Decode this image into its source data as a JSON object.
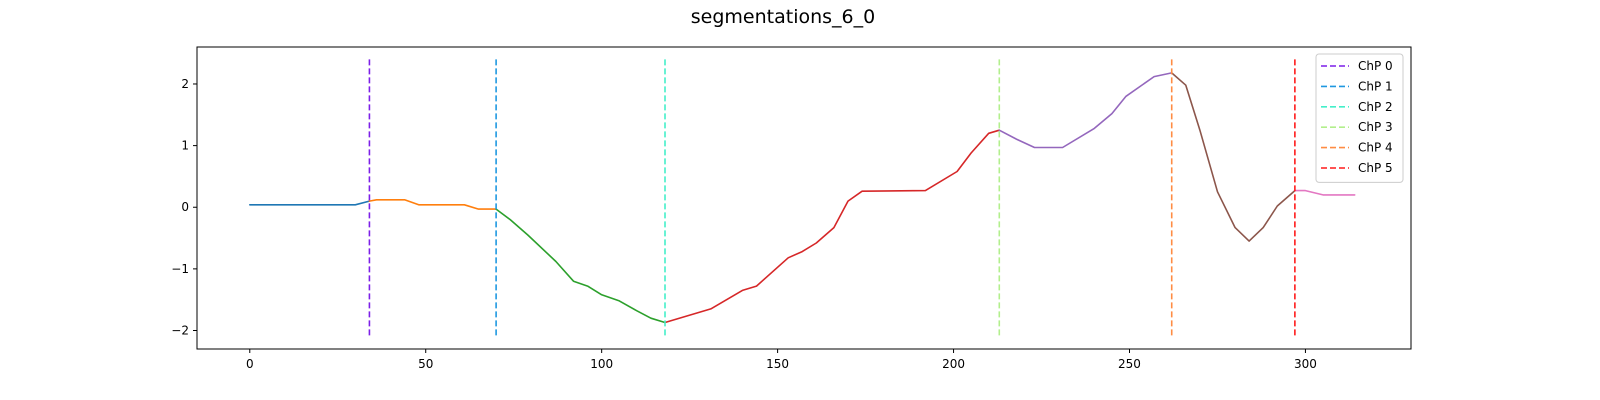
{
  "chart_data": {
    "type": "line",
    "title": "segmentations_6_0",
    "xlabel": "",
    "ylabel": "",
    "xlim": [
      -15,
      330
    ],
    "ylim": [
      -2.3,
      2.6
    ],
    "xticks": [
      0,
      50,
      100,
      150,
      200,
      250,
      300
    ],
    "yticks": [
      -2,
      -1,
      0,
      1,
      2
    ],
    "xtick_labels": [
      "0",
      "50",
      "100",
      "150",
      "200",
      "250",
      "300"
    ],
    "ytick_labels": [
      "−2",
      "−1",
      "0",
      "1",
      "2"
    ],
    "grid": false,
    "legend_position": "top-right",
    "segments": [
      {
        "color": "#1f77b4",
        "x": [
          0,
          30,
          34
        ],
        "y": [
          0.04,
          0.04,
          0.1
        ]
      },
      {
        "color": "#ff7f0e",
        "x": [
          34,
          36,
          44,
          48,
          61,
          65,
          70
        ],
        "y": [
          0.1,
          0.12,
          0.12,
          0.04,
          0.04,
          -0.03,
          -0.03
        ]
      },
      {
        "color": "#2ca02c",
        "x": [
          70,
          74,
          79,
          87,
          92,
          96,
          100,
          105,
          110,
          114,
          118
        ],
        "y": [
          -0.03,
          -0.2,
          -0.45,
          -0.88,
          -1.2,
          -1.28,
          -1.42,
          -1.52,
          -1.68,
          -1.8,
          -1.87
        ]
      },
      {
        "color": "#d62728",
        "x": [
          118,
          131,
          140,
          144,
          153,
          157,
          161,
          166,
          170,
          174,
          192,
          201,
          205,
          210,
          213
        ],
        "y": [
          -1.87,
          -1.65,
          -1.35,
          -1.28,
          -0.82,
          -0.72,
          -0.58,
          -0.33,
          0.1,
          0.26,
          0.27,
          0.58,
          0.88,
          1.2,
          1.25
        ]
      },
      {
        "color": "#9467bd",
        "x": [
          213,
          218,
          223,
          231,
          240,
          245,
          249,
          257,
          262
        ],
        "y": [
          1.25,
          1.1,
          0.97,
          0.97,
          1.28,
          1.52,
          1.8,
          2.12,
          2.18
        ]
      },
      {
        "color": "#8c564b",
        "x": [
          262,
          266,
          270,
          275,
          280,
          284,
          288,
          292,
          297
        ],
        "y": [
          2.18,
          1.98,
          1.25,
          0.25,
          -0.33,
          -0.55,
          -0.33,
          0.02,
          0.27
        ]
      },
      {
        "color": "#e377c2",
        "x": [
          297,
          300,
          305,
          309,
          314
        ],
        "y": [
          0.27,
          0.27,
          0.2,
          0.2,
          0.2
        ]
      }
    ],
    "changepoints": [
      {
        "name": "ChP 0",
        "x": 34,
        "color": "#7c1fe8"
      },
      {
        "name": "ChP 1",
        "x": 70,
        "color": "#1f98e0"
      },
      {
        "name": "ChP 2",
        "x": 118,
        "color": "#44efc9"
      },
      {
        "name": "ChP 3",
        "x": 213,
        "color": "#b2ef8c"
      },
      {
        "name": "ChP 4",
        "x": 262,
        "color": "#ff8c44"
      },
      {
        "name": "ChP 5",
        "x": 297,
        "color": "#ff1a1a"
      }
    ],
    "changepoint_y_range": [
      -2.1,
      2.4
    ]
  }
}
